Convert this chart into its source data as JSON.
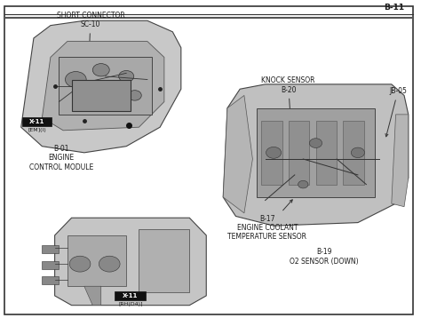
{
  "page_num": "B-11",
  "bg_color": "#ffffff",
  "border_color": "#000000",
  "text_color": "#1a1a1a",
  "diagram_bg": "#e8e8e8",
  "labels": {
    "short_connector": "SHORT CONNECTOR\nSC-10",
    "ecm_label": "B-01\nENGINE\nCONTROL MODULE",
    "x11_em": "X-11",
    "x11_em_sub": "[EM](I)",
    "knock_sensor": "KNOCK SENSOR\nB-20",
    "jb05": "JB-05",
    "b17": "B-17\nENGINE COOLANT\nTEMPERATURE SENSOR",
    "b19": "B-19\nO2 SENSOR (DOWN)",
    "x11_rh": "X-11",
    "x11_rh_sub": "[RH(D4)]"
  },
  "font_size_label": 5.5,
  "font_size_page": 6.5,
  "font_size_badge": 5.0
}
